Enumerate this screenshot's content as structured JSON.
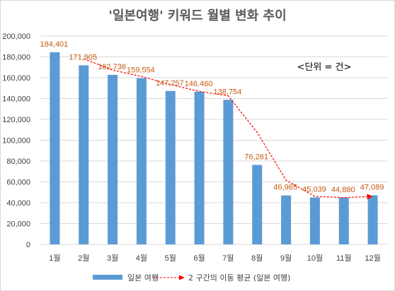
{
  "chart_data": {
    "type": "bar",
    "title": "'일본여행' 키워드 월별 변화 추이",
    "unit_note": "<단위 = 건>",
    "categories": [
      "1월",
      "2월",
      "3월",
      "4월",
      "5월",
      "6월",
      "7월",
      "8월",
      "9월",
      "10월",
      "11월",
      "12월"
    ],
    "series": [
      {
        "name": "일본 여행",
        "values": [
          184401,
          171905,
          162736,
          159554,
          147257,
          146460,
          138754,
          76261,
          46965,
          45039,
          44880,
          47089
        ],
        "value_labels": [
          "184,401",
          "171,905",
          "162,736",
          "159,554",
          "147,257",
          "146,460",
          "138,754",
          "76,261",
          "46,965",
          "45,039",
          "44,880",
          "47,089"
        ],
        "color": "#5b9bd5"
      }
    ],
    "trendline": {
      "name": "2 구간의 이동 평균 (일본 여행)",
      "type": "moving-average",
      "period": 2,
      "color": "#ff0000"
    },
    "ylim": [
      0,
      200000
    ],
    "y_ticks": [
      0,
      20000,
      40000,
      60000,
      80000,
      100000,
      120000,
      140000,
      160000,
      180000,
      200000
    ],
    "y_tick_labels": [
      "0",
      "20,000",
      "40,000",
      "60,000",
      "80,000",
      "100,000",
      "120,000",
      "140,000",
      "160,000",
      "180,000",
      "200,000"
    ],
    "grid": true,
    "legend_position": "bottom",
    "data_label_color": "#c55a11"
  }
}
